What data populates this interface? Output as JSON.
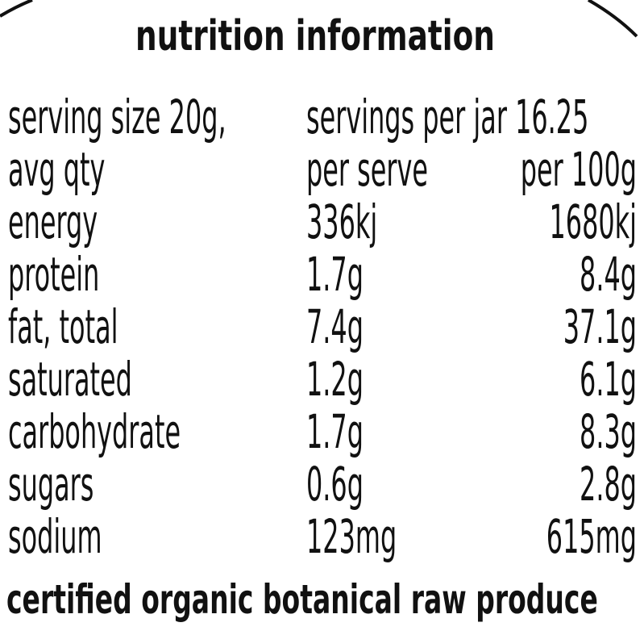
{
  "title": "nutrition information",
  "serving": {
    "size": "serving size 20g,",
    "servings": "servings per jar 16.25"
  },
  "header": [
    "avg qty",
    "per serve",
    "per 100g"
  ],
  "rows": [
    [
      "energy",
      "336kj",
      "1680kj"
    ],
    [
      "protein",
      "1.7g",
      "8.4g"
    ],
    [
      "fat, total",
      "7.4g",
      "37.1g"
    ],
    [
      "saturated",
      "1.2g",
      "6.1g"
    ],
    [
      "carbohydrate",
      "1.7g",
      "8.3g"
    ],
    [
      "sugars",
      "0.6g",
      "2.8g"
    ],
    [
      "sodium",
      "123mg",
      "615mg"
    ]
  ],
  "footer": "certified organic botanical raw produce"
}
